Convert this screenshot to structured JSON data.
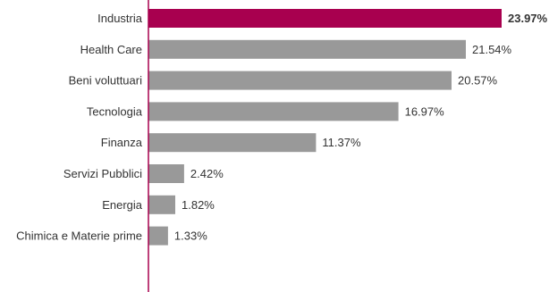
{
  "chart_data": {
    "type": "bar",
    "orientation": "horizontal",
    "categories": [
      "Industria",
      "Health Care",
      "Beni voluttuari",
      "Tecnologia",
      "Finanza",
      "Servizi Pubblici",
      "Energia",
      "Chimica e Materie prime"
    ],
    "values": [
      23.97,
      21.54,
      20.57,
      16.97,
      11.37,
      2.42,
      1.82,
      1.33
    ],
    "value_labels": [
      "23.97%",
      "21.54%",
      "20.57%",
      "16.97%",
      "11.37%",
      "2.42%",
      "1.82%",
      "1.33%"
    ],
    "highlight_index": 0,
    "xlim": [
      0,
      23.97
    ],
    "grid": false,
    "legend": "none"
  },
  "colors": {
    "highlight": "#a8004f",
    "bar": "#999999",
    "axis": "#a8004f",
    "text": "#333333"
  }
}
